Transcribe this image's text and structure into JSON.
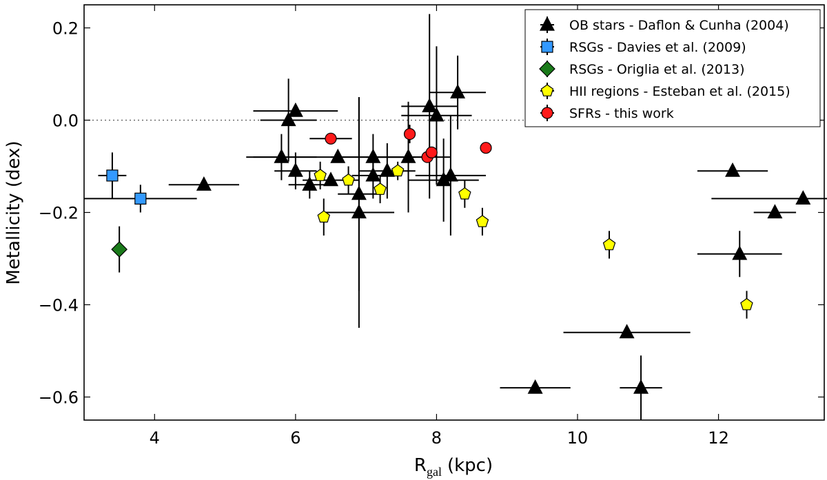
{
  "chart_data": {
    "type": "scatter",
    "xlabel_main": "R",
    "xlabel_sub": "gal",
    "xlabel_unit": "(kpc)",
    "ylabel": "Metallicity (dex)",
    "xlim": [
      3.0,
      13.5
    ],
    "ylim": [
      -0.65,
      0.25
    ],
    "xticks": [
      4,
      6,
      8,
      10,
      12
    ],
    "yticks": [
      -0.6,
      -0.4,
      -0.2,
      0.0,
      0.2
    ],
    "xtick_labels": [
      "4",
      "6",
      "8",
      "10",
      "12"
    ],
    "ytick_labels": [
      "−0.6",
      "−0.4",
      "−0.2",
      "0.0",
      "0.2"
    ],
    "reference_line": {
      "y": 0.0,
      "style": "dotted"
    },
    "legend_position": "top-right",
    "series": [
      {
        "name": "OB stars - Daflon & Cunha (2004)",
        "marker": "triangle",
        "color": "#000000",
        "points": [
          {
            "x": 4.7,
            "y": -0.14,
            "xerr": 0.5,
            "yerr": 0.0
          },
          {
            "x": 5.8,
            "y": -0.08,
            "xerr": 0.5,
            "yerr": 0.05
          },
          {
            "x": 5.9,
            "y": 0.0,
            "xerr": 0.4,
            "yerr": 0.09
          },
          {
            "x": 6.0,
            "y": 0.02,
            "xerr": 0.6,
            "yerr": 0.0
          },
          {
            "x": 6.0,
            "y": -0.11,
            "xerr": 0.3,
            "yerr": 0.04
          },
          {
            "x": 6.2,
            "y": -0.14,
            "xerr": 0.3,
            "yerr": 0.03
          },
          {
            "x": 6.5,
            "y": -0.13,
            "xerr": 0.4,
            "yerr": 0.0
          },
          {
            "x": 6.6,
            "y": -0.08,
            "xerr": 1.2,
            "yerr": 0.0
          },
          {
            "x": 6.9,
            "y": -0.16,
            "xerr": 0.3,
            "yerr": 0.21
          },
          {
            "x": 6.9,
            "y": -0.2,
            "xerr": 0.5,
            "yerr": 0.25
          },
          {
            "x": 7.1,
            "y": -0.08,
            "xerr": 0.6,
            "yerr": 0.05
          },
          {
            "x": 7.1,
            "y": -0.12,
            "xerr": 0.3,
            "yerr": 0.05
          },
          {
            "x": 7.3,
            "y": -0.11,
            "xerr": 0.4,
            "yerr": 0.06
          },
          {
            "x": 7.6,
            "y": -0.08,
            "xerr": 0.6,
            "yerr": 0.12
          },
          {
            "x": 7.9,
            "y": 0.03,
            "xerr": 0.4,
            "yerr": 0.2
          },
          {
            "x": 8.0,
            "y": 0.01,
            "xerr": 0.5,
            "yerr": 0.15
          },
          {
            "x": 8.1,
            "y": -0.13,
            "xerr": 0.5,
            "yerr": 0.09
          },
          {
            "x": 8.2,
            "y": -0.12,
            "xerr": 0.5,
            "yerr": 0.13
          },
          {
            "x": 8.3,
            "y": 0.06,
            "xerr": 0.4,
            "yerr": 0.08
          },
          {
            "x": 9.4,
            "y": -0.58,
            "xerr": 0.5,
            "yerr": 0.0
          },
          {
            "x": 10.7,
            "y": -0.46,
            "xerr": 0.9,
            "yerr": 0.0
          },
          {
            "x": 10.9,
            "y": -0.58,
            "xerr": 0.3,
            "yerr": 0.07
          },
          {
            "x": 12.2,
            "y": -0.11,
            "xerr": 0.5,
            "yerr": 0.0
          },
          {
            "x": 12.3,
            "y": -0.29,
            "xerr": 0.6,
            "yerr": 0.05
          },
          {
            "x": 12.8,
            "y": -0.2,
            "xerr": 0.3,
            "yerr": 0.0
          },
          {
            "x": 13.2,
            "y": -0.17,
            "xerr": 1.3,
            "yerr": 0.0
          }
        ]
      },
      {
        "name": "RSGs - Davies et al. (2009)",
        "marker": "square",
        "color": "#3399ff",
        "points": [
          {
            "x": 3.4,
            "y": -0.12,
            "xerr": 0.2,
            "yerr": 0.05
          },
          {
            "x": 3.8,
            "y": -0.17,
            "xerr": 0.8,
            "yerr": 0.03
          }
        ]
      },
      {
        "name": "RSGs - Origlia et al. (2013)",
        "marker": "diamond",
        "color": "#1a7a1a",
        "points": [
          {
            "x": 3.5,
            "y": -0.28,
            "xerr": 0.0,
            "yerr": 0.05
          }
        ]
      },
      {
        "name": "HII regions - Esteban et al. (2015)",
        "marker": "pentagon",
        "color": "#ffff00",
        "points": [
          {
            "x": 6.35,
            "y": -0.12,
            "xerr": 0.0,
            "yerr": 0.03
          },
          {
            "x": 6.4,
            "y": -0.21,
            "xerr": 0.0,
            "yerr": 0.04
          },
          {
            "x": 6.75,
            "y": -0.13,
            "xerr": 0.0,
            "yerr": 0.03
          },
          {
            "x": 7.2,
            "y": -0.15,
            "xerr": 0.0,
            "yerr": 0.03
          },
          {
            "x": 7.45,
            "y": -0.11,
            "xerr": 0.0,
            "yerr": 0.02
          },
          {
            "x": 8.4,
            "y": -0.16,
            "xerr": 0.0,
            "yerr": 0.03
          },
          {
            "x": 8.65,
            "y": -0.22,
            "xerr": 0.0,
            "yerr": 0.03
          },
          {
            "x": 10.45,
            "y": -0.27,
            "xerr": 0.0,
            "yerr": 0.03
          },
          {
            "x": 12.4,
            "y": -0.4,
            "xerr": 0.0,
            "yerr": 0.03
          }
        ]
      },
      {
        "name": "SFRs - this work",
        "marker": "circle",
        "color": "#ff1a1a",
        "points": [
          {
            "x": 6.5,
            "y": -0.04,
            "xerr": 0.3,
            "yerr": 0.0
          },
          {
            "x": 7.62,
            "y": -0.03,
            "xerr": 0.0,
            "yerr": 0.02
          },
          {
            "x": 7.87,
            "y": -0.08,
            "xerr": 0.0,
            "yerr": 0.0
          },
          {
            "x": 7.93,
            "y": -0.07,
            "xerr": 0.0,
            "yerr": 0.0
          },
          {
            "x": 8.7,
            "y": -0.06,
            "xerr": 0.0,
            "yerr": 0.0
          }
        ]
      }
    ]
  }
}
